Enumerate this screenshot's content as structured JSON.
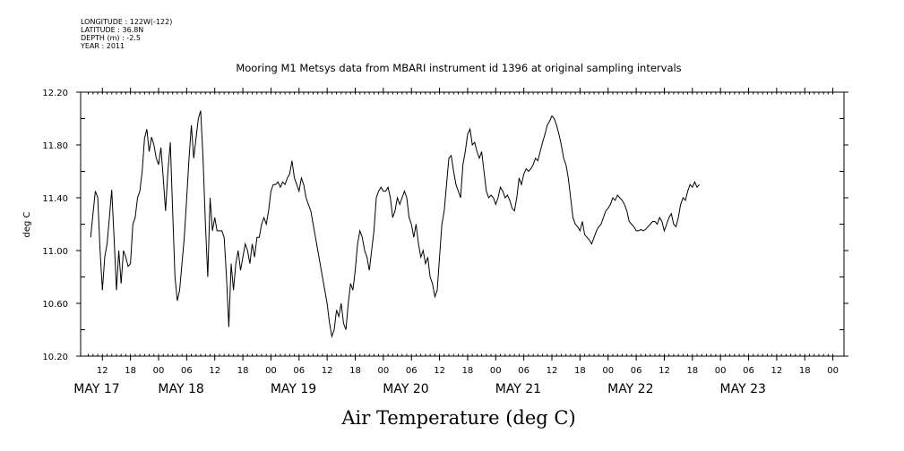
{
  "meta_lines": [
    "LONGITUDE : 122W(-122)",
    "LATITUDE : 36.8N",
    "DEPTH (m) : -2.5",
    "YEAR : 2011"
  ],
  "chart_data": {
    "type": "line",
    "title": "Mooring M1 Metsys data from MBARI instrument id 1396 at original sampling intervals",
    "xlabel": "Air Temperature (deg C)",
    "ylabel": "deg C",
    "x_unit": "hour offset from 2011-05-17 00:00",
    "xlim": [
      9,
      168
    ],
    "ylim": [
      10.2,
      12.2
    ],
    "y_ticks": [
      "10.20",
      "10.60",
      "11.00",
      "11.40",
      "11.80",
      "12.20"
    ],
    "x_hour_ticks": [
      {
        "h": 12,
        "label": "12"
      },
      {
        "h": 18,
        "label": "18"
      },
      {
        "h": 24,
        "label": "00"
      },
      {
        "h": 30,
        "label": "06"
      },
      {
        "h": 36,
        "label": "12"
      },
      {
        "h": 42,
        "label": "18"
      },
      {
        "h": 48,
        "label": "00"
      },
      {
        "h": 54,
        "label": "06"
      },
      {
        "h": 60,
        "label": "12"
      },
      {
        "h": 66,
        "label": "18"
      },
      {
        "h": 72,
        "label": "00"
      },
      {
        "h": 78,
        "label": "06"
      },
      {
        "h": 84,
        "label": "12"
      },
      {
        "h": 90,
        "label": "18"
      },
      {
        "h": 96,
        "label": "00"
      },
      {
        "h": 102,
        "label": "06"
      },
      {
        "h": 108,
        "label": "12"
      },
      {
        "h": 114,
        "label": "18"
      },
      {
        "h": 120,
        "label": "00"
      },
      {
        "h": 126,
        "label": "06"
      },
      {
        "h": 132,
        "label": "12"
      },
      {
        "h": 138,
        "label": "18"
      },
      {
        "h": 144,
        "label": "00"
      },
      {
        "h": 150,
        "label": "06"
      },
      {
        "h": 156,
        "label": "12"
      },
      {
        "h": 162,
        "label": "18"
      },
      {
        "h": 168,
        "label": "00"
      }
    ],
    "date_labels": [
      {
        "h": 10.8,
        "label": "MAY 17"
      },
      {
        "h": 28.8,
        "label": "MAY 18"
      },
      {
        "h": 52.8,
        "label": "MAY 19"
      },
      {
        "h": 76.8,
        "label": "MAY 20"
      },
      {
        "h": 100.8,
        "label": "MAY 21"
      },
      {
        "h": 124.8,
        "label": "MAY 22"
      },
      {
        "h": 148.8,
        "label": "MAY 23"
      }
    ],
    "series": [
      {
        "color": "#000000",
        "points": [
          [
            9.5,
            11.1
          ],
          [
            10,
            11.28
          ],
          [
            10.5,
            11.45
          ],
          [
            11,
            11.4
          ],
          [
            11.5,
            11.0
          ],
          [
            12,
            10.7
          ],
          [
            12.5,
            10.95
          ],
          [
            13,
            11.05
          ],
          [
            13.5,
            11.25
          ],
          [
            14,
            11.46
          ],
          [
            14.5,
            11.1
          ],
          [
            15,
            10.7
          ],
          [
            15.5,
            11.0
          ],
          [
            16,
            10.75
          ],
          [
            16.5,
            11.0
          ],
          [
            17,
            10.95
          ],
          [
            17.5,
            10.88
          ],
          [
            18,
            10.9
          ],
          [
            18.5,
            11.2
          ],
          [
            19,
            11.25
          ],
          [
            19.5,
            11.4
          ],
          [
            20,
            11.45
          ],
          [
            20.5,
            11.6
          ],
          [
            21,
            11.85
          ],
          [
            21.5,
            11.92
          ],
          [
            22,
            11.75
          ],
          [
            22.5,
            11.86
          ],
          [
            23,
            11.8
          ],
          [
            23.5,
            11.7
          ],
          [
            24,
            11.65
          ],
          [
            24.5,
            11.78
          ],
          [
            25,
            11.55
          ],
          [
            25.5,
            11.3
          ],
          [
            26,
            11.6
          ],
          [
            26.5,
            11.82
          ],
          [
            27,
            11.3
          ],
          [
            27.5,
            10.8
          ],
          [
            28,
            10.62
          ],
          [
            28.5,
            10.7
          ],
          [
            29,
            10.9
          ],
          [
            29.5,
            11.1
          ],
          [
            30,
            11.4
          ],
          [
            30.5,
            11.7
          ],
          [
            31,
            11.95
          ],
          [
            31.5,
            11.7
          ],
          [
            32,
            11.85
          ],
          [
            32.5,
            12.0
          ],
          [
            33,
            12.06
          ],
          [
            33.5,
            11.7
          ],
          [
            34,
            11.2
          ],
          [
            34.5,
            10.8
          ],
          [
            35,
            11.4
          ],
          [
            35.5,
            11.15
          ],
          [
            36,
            11.25
          ],
          [
            36.5,
            11.15
          ],
          [
            37,
            11.15
          ],
          [
            37.5,
            11.15
          ],
          [
            38,
            11.1
          ],
          [
            38.5,
            10.8
          ],
          [
            39,
            10.42
          ],
          [
            39.5,
            10.9
          ],
          [
            40,
            10.7
          ],
          [
            40.5,
            10.9
          ],
          [
            41,
            11.0
          ],
          [
            41.5,
            10.85
          ],
          [
            42,
            10.95
          ],
          [
            42.5,
            11.05
          ],
          [
            43,
            11.0
          ],
          [
            43.5,
            10.9
          ],
          [
            44,
            11.05
          ],
          [
            44.5,
            10.95
          ],
          [
            45,
            11.1
          ],
          [
            45.5,
            11.1
          ],
          [
            46,
            11.2
          ],
          [
            46.5,
            11.25
          ],
          [
            47,
            11.2
          ],
          [
            47.5,
            11.3
          ],
          [
            48,
            11.45
          ],
          [
            48.5,
            11.5
          ],
          [
            49,
            11.5
          ],
          [
            49.5,
            11.52
          ],
          [
            50,
            11.48
          ],
          [
            50.5,
            11.52
          ],
          [
            51,
            11.5
          ],
          [
            51.5,
            11.55
          ],
          [
            52,
            11.58
          ],
          [
            52.5,
            11.68
          ],
          [
            53,
            11.55
          ],
          [
            53.5,
            11.5
          ],
          [
            54,
            11.45
          ],
          [
            54.5,
            11.55
          ],
          [
            55,
            11.5
          ],
          [
            55.5,
            11.4
          ],
          [
            56,
            11.35
          ],
          [
            56.5,
            11.3
          ],
          [
            57,
            11.2
          ],
          [
            57.5,
            11.1
          ],
          [
            58,
            11.0
          ],
          [
            58.5,
            10.9
          ],
          [
            59,
            10.8
          ],
          [
            59.5,
            10.7
          ],
          [
            60,
            10.6
          ],
          [
            60.5,
            10.45
          ],
          [
            61,
            10.35
          ],
          [
            61.5,
            10.4
          ],
          [
            62,
            10.55
          ],
          [
            62.5,
            10.5
          ],
          [
            63,
            10.6
          ],
          [
            63.5,
            10.45
          ],
          [
            64,
            10.4
          ],
          [
            64.5,
            10.6
          ],
          [
            65,
            10.75
          ],
          [
            65.5,
            10.7
          ],
          [
            66,
            10.85
          ],
          [
            66.5,
            11.05
          ],
          [
            67,
            11.15
          ],
          [
            67.5,
            11.1
          ],
          [
            68,
            11.0
          ],
          [
            68.5,
            10.95
          ],
          [
            69,
            10.85
          ],
          [
            69.5,
            11.0
          ],
          [
            70,
            11.15
          ],
          [
            70.5,
            11.4
          ],
          [
            71,
            11.45
          ],
          [
            71.5,
            11.48
          ],
          [
            72,
            11.45
          ],
          [
            72.5,
            11.45
          ],
          [
            73,
            11.48
          ],
          [
            73.5,
            11.4
          ],
          [
            74,
            11.25
          ],
          [
            74.5,
            11.3
          ],
          [
            75,
            11.4
          ],
          [
            75.5,
            11.35
          ],
          [
            76,
            11.4
          ],
          [
            76.5,
            11.45
          ],
          [
            77,
            11.4
          ],
          [
            77.5,
            11.25
          ],
          [
            78,
            11.2
          ],
          [
            78.5,
            11.1
          ],
          [
            79,
            11.2
          ],
          [
            79.5,
            11.05
          ],
          [
            80,
            10.95
          ],
          [
            80.5,
            11.0
          ],
          [
            81,
            10.9
          ],
          [
            81.5,
            10.95
          ],
          [
            82,
            10.8
          ],
          [
            82.5,
            10.75
          ],
          [
            83,
            10.65
          ],
          [
            83.5,
            10.7
          ],
          [
            84,
            10.95
          ],
          [
            84.5,
            11.2
          ],
          [
            85,
            11.3
          ],
          [
            85.5,
            11.5
          ],
          [
            86,
            11.7
          ],
          [
            86.5,
            11.72
          ],
          [
            87,
            11.6
          ],
          [
            87.5,
            11.5
          ],
          [
            88,
            11.45
          ],
          [
            88.5,
            11.4
          ],
          [
            89,
            11.65
          ],
          [
            89.5,
            11.75
          ],
          [
            90,
            11.88
          ],
          [
            90.5,
            11.92
          ],
          [
            91,
            11.8
          ],
          [
            91.5,
            11.82
          ],
          [
            92,
            11.75
          ],
          [
            92.5,
            11.7
          ],
          [
            93,
            11.75
          ],
          [
            93.5,
            11.6
          ],
          [
            94,
            11.45
          ],
          [
            94.5,
            11.4
          ],
          [
            95,
            11.42
          ],
          [
            95.5,
            11.4
          ],
          [
            96,
            11.35
          ],
          [
            96.5,
            11.4
          ],
          [
            97,
            11.48
          ],
          [
            97.5,
            11.45
          ],
          [
            98,
            11.4
          ],
          [
            98.5,
            11.42
          ],
          [
            99,
            11.38
          ],
          [
            99.5,
            11.32
          ],
          [
            100,
            11.3
          ],
          [
            100.5,
            11.4
          ],
          [
            101,
            11.55
          ],
          [
            101.5,
            11.5
          ],
          [
            102,
            11.58
          ],
          [
            102.5,
            11.62
          ],
          [
            103,
            11.6
          ],
          [
            103.5,
            11.62
          ],
          [
            104,
            11.65
          ],
          [
            104.5,
            11.7
          ],
          [
            105,
            11.68
          ],
          [
            105.5,
            11.75
          ],
          [
            106,
            11.82
          ],
          [
            106.5,
            11.88
          ],
          [
            107,
            11.95
          ],
          [
            107.5,
            11.98
          ],
          [
            108,
            12.02
          ],
          [
            108.5,
            12.0
          ],
          [
            109,
            11.95
          ],
          [
            109.5,
            11.88
          ],
          [
            110,
            11.8
          ],
          [
            110.5,
            11.7
          ],
          [
            111,
            11.65
          ],
          [
            111.5,
            11.55
          ],
          [
            112,
            11.4
          ],
          [
            112.5,
            11.25
          ],
          [
            113,
            11.2
          ],
          [
            113.5,
            11.18
          ],
          [
            114,
            11.15
          ],
          [
            114.5,
            11.22
          ],
          [
            115,
            11.12
          ],
          [
            115.5,
            11.1
          ],
          [
            116,
            11.08
          ],
          [
            116.5,
            11.05
          ],
          [
            117,
            11.1
          ],
          [
            117.5,
            11.15
          ],
          [
            118,
            11.18
          ],
          [
            118.5,
            11.2
          ],
          [
            119,
            11.25
          ],
          [
            119.5,
            11.3
          ],
          [
            120,
            11.32
          ],
          [
            120.5,
            11.35
          ],
          [
            121,
            11.4
          ],
          [
            121.5,
            11.38
          ],
          [
            122,
            11.42
          ],
          [
            122.5,
            11.4
          ],
          [
            123,
            11.38
          ],
          [
            123.5,
            11.35
          ],
          [
            124,
            11.3
          ],
          [
            124.5,
            11.22
          ],
          [
            125,
            11.2
          ],
          [
            125.5,
            11.18
          ],
          [
            126,
            11.15
          ],
          [
            126.5,
            11.15
          ],
          [
            127,
            11.16
          ],
          [
            127.5,
            11.15
          ],
          [
            128,
            11.16
          ],
          [
            128.5,
            11.18
          ],
          [
            129,
            11.2
          ],
          [
            129.5,
            11.22
          ],
          [
            130,
            11.22
          ],
          [
            130.5,
            11.2
          ],
          [
            131,
            11.25
          ],
          [
            131.5,
            11.22
          ],
          [
            132,
            11.15
          ],
          [
            132.5,
            11.2
          ],
          [
            133,
            11.25
          ],
          [
            133.5,
            11.28
          ],
          [
            134,
            11.2
          ],
          [
            134.5,
            11.18
          ],
          [
            135,
            11.25
          ],
          [
            135.5,
            11.35
          ],
          [
            136,
            11.4
          ],
          [
            136.5,
            11.38
          ],
          [
            137,
            11.45
          ],
          [
            137.5,
            11.5
          ],
          [
            138,
            11.48
          ],
          [
            138.5,
            11.52
          ],
          [
            139,
            11.48
          ],
          [
            139.5,
            11.5
          ]
        ]
      }
    ]
  }
}
